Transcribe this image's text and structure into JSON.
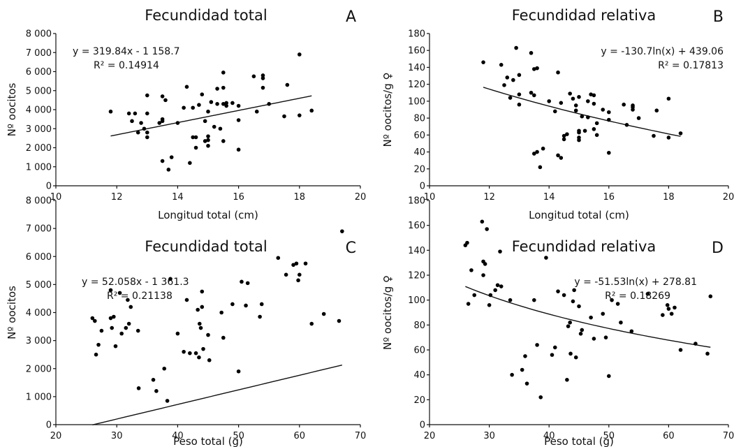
{
  "chart_data": [
    {
      "type": "scatter",
      "title": "Fecundidad total",
      "panel": "A",
      "xlabel": "Longitud total (cm)",
      "ylabel": "Nº oocitos",
      "xlim": [
        10,
        20
      ],
      "ylim": [
        0,
        8000
      ],
      "xticks": [
        "10",
        "12",
        "14",
        "16",
        "18",
        "20"
      ],
      "yticks": [
        "0",
        "1 000",
        "2 000",
        "3 000",
        "4 000",
        "5 000",
        "6 000",
        "7 000",
        "8 000"
      ],
      "equation": "y = 319.84x - 1 158.7",
      "r2": "R² = 0.14914",
      "trendline": {
        "kind": "linear",
        "slope": 319.84,
        "intercept": -1158.7,
        "xrange": [
          11.8,
          18.4
        ]
      },
      "series": [
        {
          "x": [
            11.8,
            12.4,
            12.5,
            12.6,
            12.7,
            12.8,
            12.9,
            13.0,
            13.0,
            13.0,
            13.0,
            13.4,
            13.5,
            13.5,
            13.5,
            13.5,
            13.6,
            13.7,
            13.8,
            14.0,
            14.2,
            14.3,
            14.4,
            14.5,
            14.5,
            14.6,
            14.6,
            14.7,
            14.8,
            14.9,
            14.9,
            15.0,
            15.0,
            15.0,
            15.0,
            15.1,
            15.2,
            15.3,
            15.3,
            15.4,
            15.5,
            15.5,
            15.5,
            15.5,
            15.6,
            15.6,
            15.8,
            16.0,
            16.0,
            16.0,
            16.5,
            16.6,
            16.8,
            16.8,
            16.8,
            17.0,
            17.5,
            17.6,
            18.0,
            18.0,
            18.4
          ],
          "y": [
            3900,
            3800,
            3400,
            3800,
            2800,
            3300,
            3000,
            4750,
            3800,
            2800,
            2550,
            3300,
            4700,
            3500,
            3400,
            1300,
            4500,
            850,
            1500,
            3300,
            4100,
            5200,
            1200,
            4100,
            2550,
            2550,
            2000,
            4250,
            4800,
            3400,
            2350,
            3900,
            2600,
            2400,
            2100,
            4400,
            3100,
            5100,
            4300,
            3000,
            5950,
            5150,
            4300,
            2350,
            4350,
            4200,
            4350,
            4200,
            3450,
            1900,
            5750,
            3900,
            5800,
            5650,
            5150,
            4300,
            3650,
            5300,
            6900,
            3700,
            3950
          ]
        }
      ]
    },
    {
      "type": "scatter",
      "title": "Fecundidad relativa",
      "panel": "B",
      "xlabel": "Longitud total (cm)",
      "ylabel": "Nº oocitos/g ♀",
      "xlim": [
        10,
        20
      ],
      "ylim": [
        0,
        180
      ],
      "xticks": [
        "10",
        "12",
        "14",
        "16",
        "18",
        "20"
      ],
      "yticks": [
        "0",
        "20",
        "40",
        "60",
        "80",
        "100",
        "120",
        "140",
        "160",
        "180"
      ],
      "equation": "y = -130.7ln(x) + 439.06",
      "r2": "R² = 0.17813",
      "trendline": {
        "kind": "log",
        "a": -130.7,
        "b": 439.06,
        "xrange": [
          11.8,
          18.4
        ]
      },
      "series": [
        {
          "x": [
            11.8,
            12.4,
            12.5,
            12.6,
            12.7,
            12.8,
            12.9,
            13.0,
            13.0,
            13.0,
            13.4,
            13.4,
            13.5,
            13.5,
            13.5,
            13.6,
            13.6,
            13.7,
            13.8,
            14.0,
            14.2,
            14.3,
            14.3,
            14.4,
            14.4,
            14.5,
            14.5,
            14.6,
            14.7,
            14.8,
            14.9,
            14.9,
            15.0,
            15.0,
            15.0,
            15.0,
            15.0,
            15.1,
            15.2,
            15.3,
            15.3,
            15.4,
            15.5,
            15.5,
            15.5,
            15.6,
            15.6,
            15.8,
            16.0,
            16.0,
            16.0,
            16.5,
            16.6,
            16.8,
            16.8,
            16.8,
            17.0,
            17.5,
            17.6,
            18.0,
            18.0,
            18.4
          ],
          "y": [
            146,
            143,
            119,
            128,
            104,
            125,
            163,
            96,
            131,
            108,
            110,
            157,
            107,
            38,
            138,
            40,
            139,
            22,
            44,
            100,
            88,
            134,
            36,
            33,
            98,
            55,
            59,
            61,
            109,
            103,
            89,
            95,
            65,
            63,
            57,
            54,
            105,
            82,
            65,
            81,
            100,
            108,
            67,
            107,
            97,
            60,
            74,
            90,
            87,
            78,
            39,
            96,
            72,
            93,
            95,
            90,
            80,
            59,
            89,
            57,
            103,
            62
          ]
        }
      ]
    },
    {
      "type": "scatter",
      "title": "Fecundidad total",
      "panel": "C",
      "xlabel": "Peso total (g)",
      "ylabel": "Nº oocitos",
      "xlim": [
        20,
        70
      ],
      "ylim": [
        0,
        8000
      ],
      "xticks": [
        "20",
        "30",
        "40",
        "50",
        "60",
        "70"
      ],
      "yticks": [
        "0",
        "1 000",
        "2 000",
        "3 000",
        "4 000",
        "5 000",
        "6 000",
        "7 000",
        "8 000"
      ],
      "equation": "y = 52.058x - 1 361.3",
      "r2": "R² = 0.21138",
      "trendline": {
        "kind": "linear",
        "slope": 52.058,
        "intercept": -1361.3,
        "xrange": [
          26,
          67
        ]
      },
      "series": [
        {
          "x": [
            26.0,
            26.4,
            26.6,
            27.0,
            27.5,
            29.0,
            29.0,
            29.2,
            29.5,
            29.8,
            30.5,
            30.8,
            31.5,
            31.8,
            32.0,
            32.3,
            33.5,
            33.6,
            36.0,
            36.5,
            37.8,
            38.3,
            38.8,
            40.0,
            41.0,
            41.5,
            42.0,
            43.0,
            43.3,
            43.5,
            43.6,
            43.8,
            44.0,
            44.0,
            44.2,
            45.0,
            45.2,
            47.2,
            47.5,
            49.0,
            50.0,
            50.5,
            51.2,
            51.5,
            53.5,
            53.8,
            56.5,
            57.8,
            59.0,
            59.5,
            59.8,
            60.0,
            61.0,
            62.0,
            64.0,
            66.5,
            67.0
          ],
          "y": [
            3800,
            3700,
            2500,
            2850,
            3350,
            4800,
            3800,
            3450,
            3850,
            2800,
            4700,
            3250,
            3450,
            4450,
            3600,
            4200,
            3350,
            1300,
            1600,
            1200,
            2000,
            850,
            5200,
            3250,
            2600,
            4450,
            2550,
            2550,
            4100,
            2400,
            3600,
            3450,
            4200,
            4750,
            2700,
            3200,
            2300,
            4000,
            3100,
            4300,
            1900,
            5100,
            4250,
            5050,
            3850,
            4300,
            5950,
            5350,
            5700,
            5750,
            5150,
            5350,
            5750,
            3600,
            3950,
            3700,
            6900
          ]
        }
      ]
    },
    {
      "type": "scatter",
      "title": "Fecundidad relativa",
      "panel": "D",
      "xlabel": "Peso total (g)",
      "ylabel": "Nº oocitos/g ♀",
      "xlim": [
        20,
        70
      ],
      "ylim": [
        0,
        180
      ],
      "xticks": [
        "20",
        "30",
        "40",
        "50",
        "60",
        "70"
      ],
      "yticks": [
        "0",
        "20",
        "40",
        "60",
        "80",
        "100",
        "120",
        "140",
        "160",
        "180"
      ],
      "equation": "y = -51.53ln(x) + 278.81",
      "r2": "R² = 0.18269",
      "trendline": {
        "kind": "log",
        "a": -51.53,
        "b": 278.81,
        "xrange": [
          26,
          67
        ]
      },
      "series": [
        {
          "x": [
            26.0,
            26.3,
            26.5,
            27.0,
            27.5,
            28.8,
            29.0,
            29.0,
            29.3,
            29.6,
            30.0,
            30.2,
            31.0,
            31.4,
            31.8,
            32.0,
            33.5,
            33.8,
            35.5,
            36.0,
            36.3,
            37.5,
            38.0,
            38.6,
            39.5,
            40.5,
            41.0,
            41.5,
            42.5,
            43.0,
            43.2,
            43.5,
            43.6,
            44.0,
            44.2,
            44.5,
            45.0,
            45.3,
            45.5,
            47.0,
            47.5,
            49.0,
            49.5,
            50.0,
            50.5,
            51.5,
            52.0,
            53.8,
            56.5,
            59.0,
            59.8,
            60.0,
            60.5,
            61.0,
            62.0,
            64.5,
            66.5,
            67.0
          ],
          "y": [
            144,
            146,
            97,
            124,
            104,
            163,
            131,
            120,
            129,
            157,
            96,
            104,
            108,
            112,
            139,
            111,
            100,
            40,
            44,
            55,
            33,
            100,
            64,
            22,
            134,
            56,
            62,
            107,
            104,
            36,
            79,
            82,
            57,
            99,
            108,
            54,
            95,
            73,
            76,
            86,
            69,
            89,
            70,
            39,
            100,
            97,
            82,
            75,
            105,
            88,
            96,
            93,
            89,
            94,
            60,
            65,
            57,
            103
          ]
        }
      ]
    }
  ]
}
